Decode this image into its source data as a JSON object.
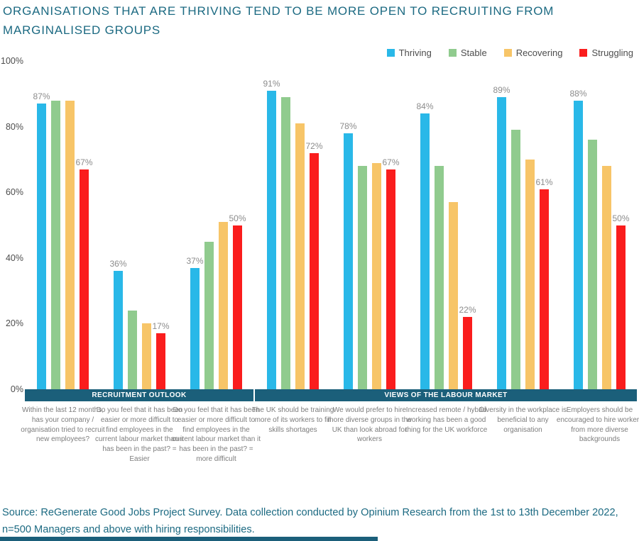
{
  "title": "ORGANISATIONS THAT ARE THRIVING TEND TO BE MORE OPEN TO RECRUITING FROM MARGINALISED GROUPS",
  "source": "Source: ReGenerate Good Jobs Project Survey. Data collection conducted by Opinium Research from the 1st to 13th December 2022, n=500 Managers and above with hiring responsibilities.",
  "colors": {
    "thriving": "#29b8e8",
    "stable": "#90cb8e",
    "recovering": "#f7c568",
    "struggling": "#fa1d1d",
    "band": "#1b5f7a",
    "title_text": "#1c6a82",
    "value_label": "#8c8c8c"
  },
  "chart_data": {
    "type": "bar",
    "title": "ORGANISATIONS THAT ARE THRIVING TEND TO BE MORE OPEN TO RECRUITING FROM MARGINALISED GROUPS",
    "categories": [
      "Within the last 12 months, has your company / organisation tried to recruit new employees?",
      "Do you feel that it has been easier or more difficult to find employees in the current labour market than it has been in the past? = Easier",
      "Do you feel that it has been easier or more difficult to find employees in the current labour market than it has been in the past? = more difficult",
      "The UK should be training more of its workers to fill skills shortages",
      "We would prefer to hire more diverse groups in the UK than look abroad for workers",
      "Increased remote / hybrid working has been a good thing for the UK workforce",
      "Diversity in the workplace is beneficial to any organisation",
      "Employers should be encouraged to hire workers from more diverse backgrounds"
    ],
    "sections": [
      {
        "label": "RECRUITMENT OUTLOOK",
        "span": [
          0,
          3
        ]
      },
      {
        "label": "VIEWS OF THE LABOUR MARKET",
        "span": [
          3,
          8
        ]
      }
    ],
    "series": [
      {
        "name": "Thriving",
        "color": "#29b8e8",
        "values": [
          87,
          36,
          37,
          91,
          78,
          84,
          89,
          88
        ],
        "show_labels": true
      },
      {
        "name": "Stable",
        "color": "#90cb8e",
        "values": [
          88,
          24,
          45,
          89,
          68,
          68,
          79,
          76
        ],
        "show_labels": false
      },
      {
        "name": "Recovering",
        "color": "#f7c568",
        "values": [
          88,
          20,
          51,
          81,
          69,
          57,
          70,
          68
        ],
        "show_labels": false
      },
      {
        "name": "Struggling",
        "color": "#fa1d1d",
        "values": [
          67,
          17,
          50,
          72,
          67,
          22,
          61,
          50
        ],
        "show_labels": true
      }
    ],
    "ylim": [
      0,
      100
    ],
    "yticks": [
      "0%",
      "20%",
      "40%",
      "60%",
      "80%",
      "100%"
    ],
    "grid": false,
    "legend_position": "top-right",
    "label_format": "percent"
  }
}
